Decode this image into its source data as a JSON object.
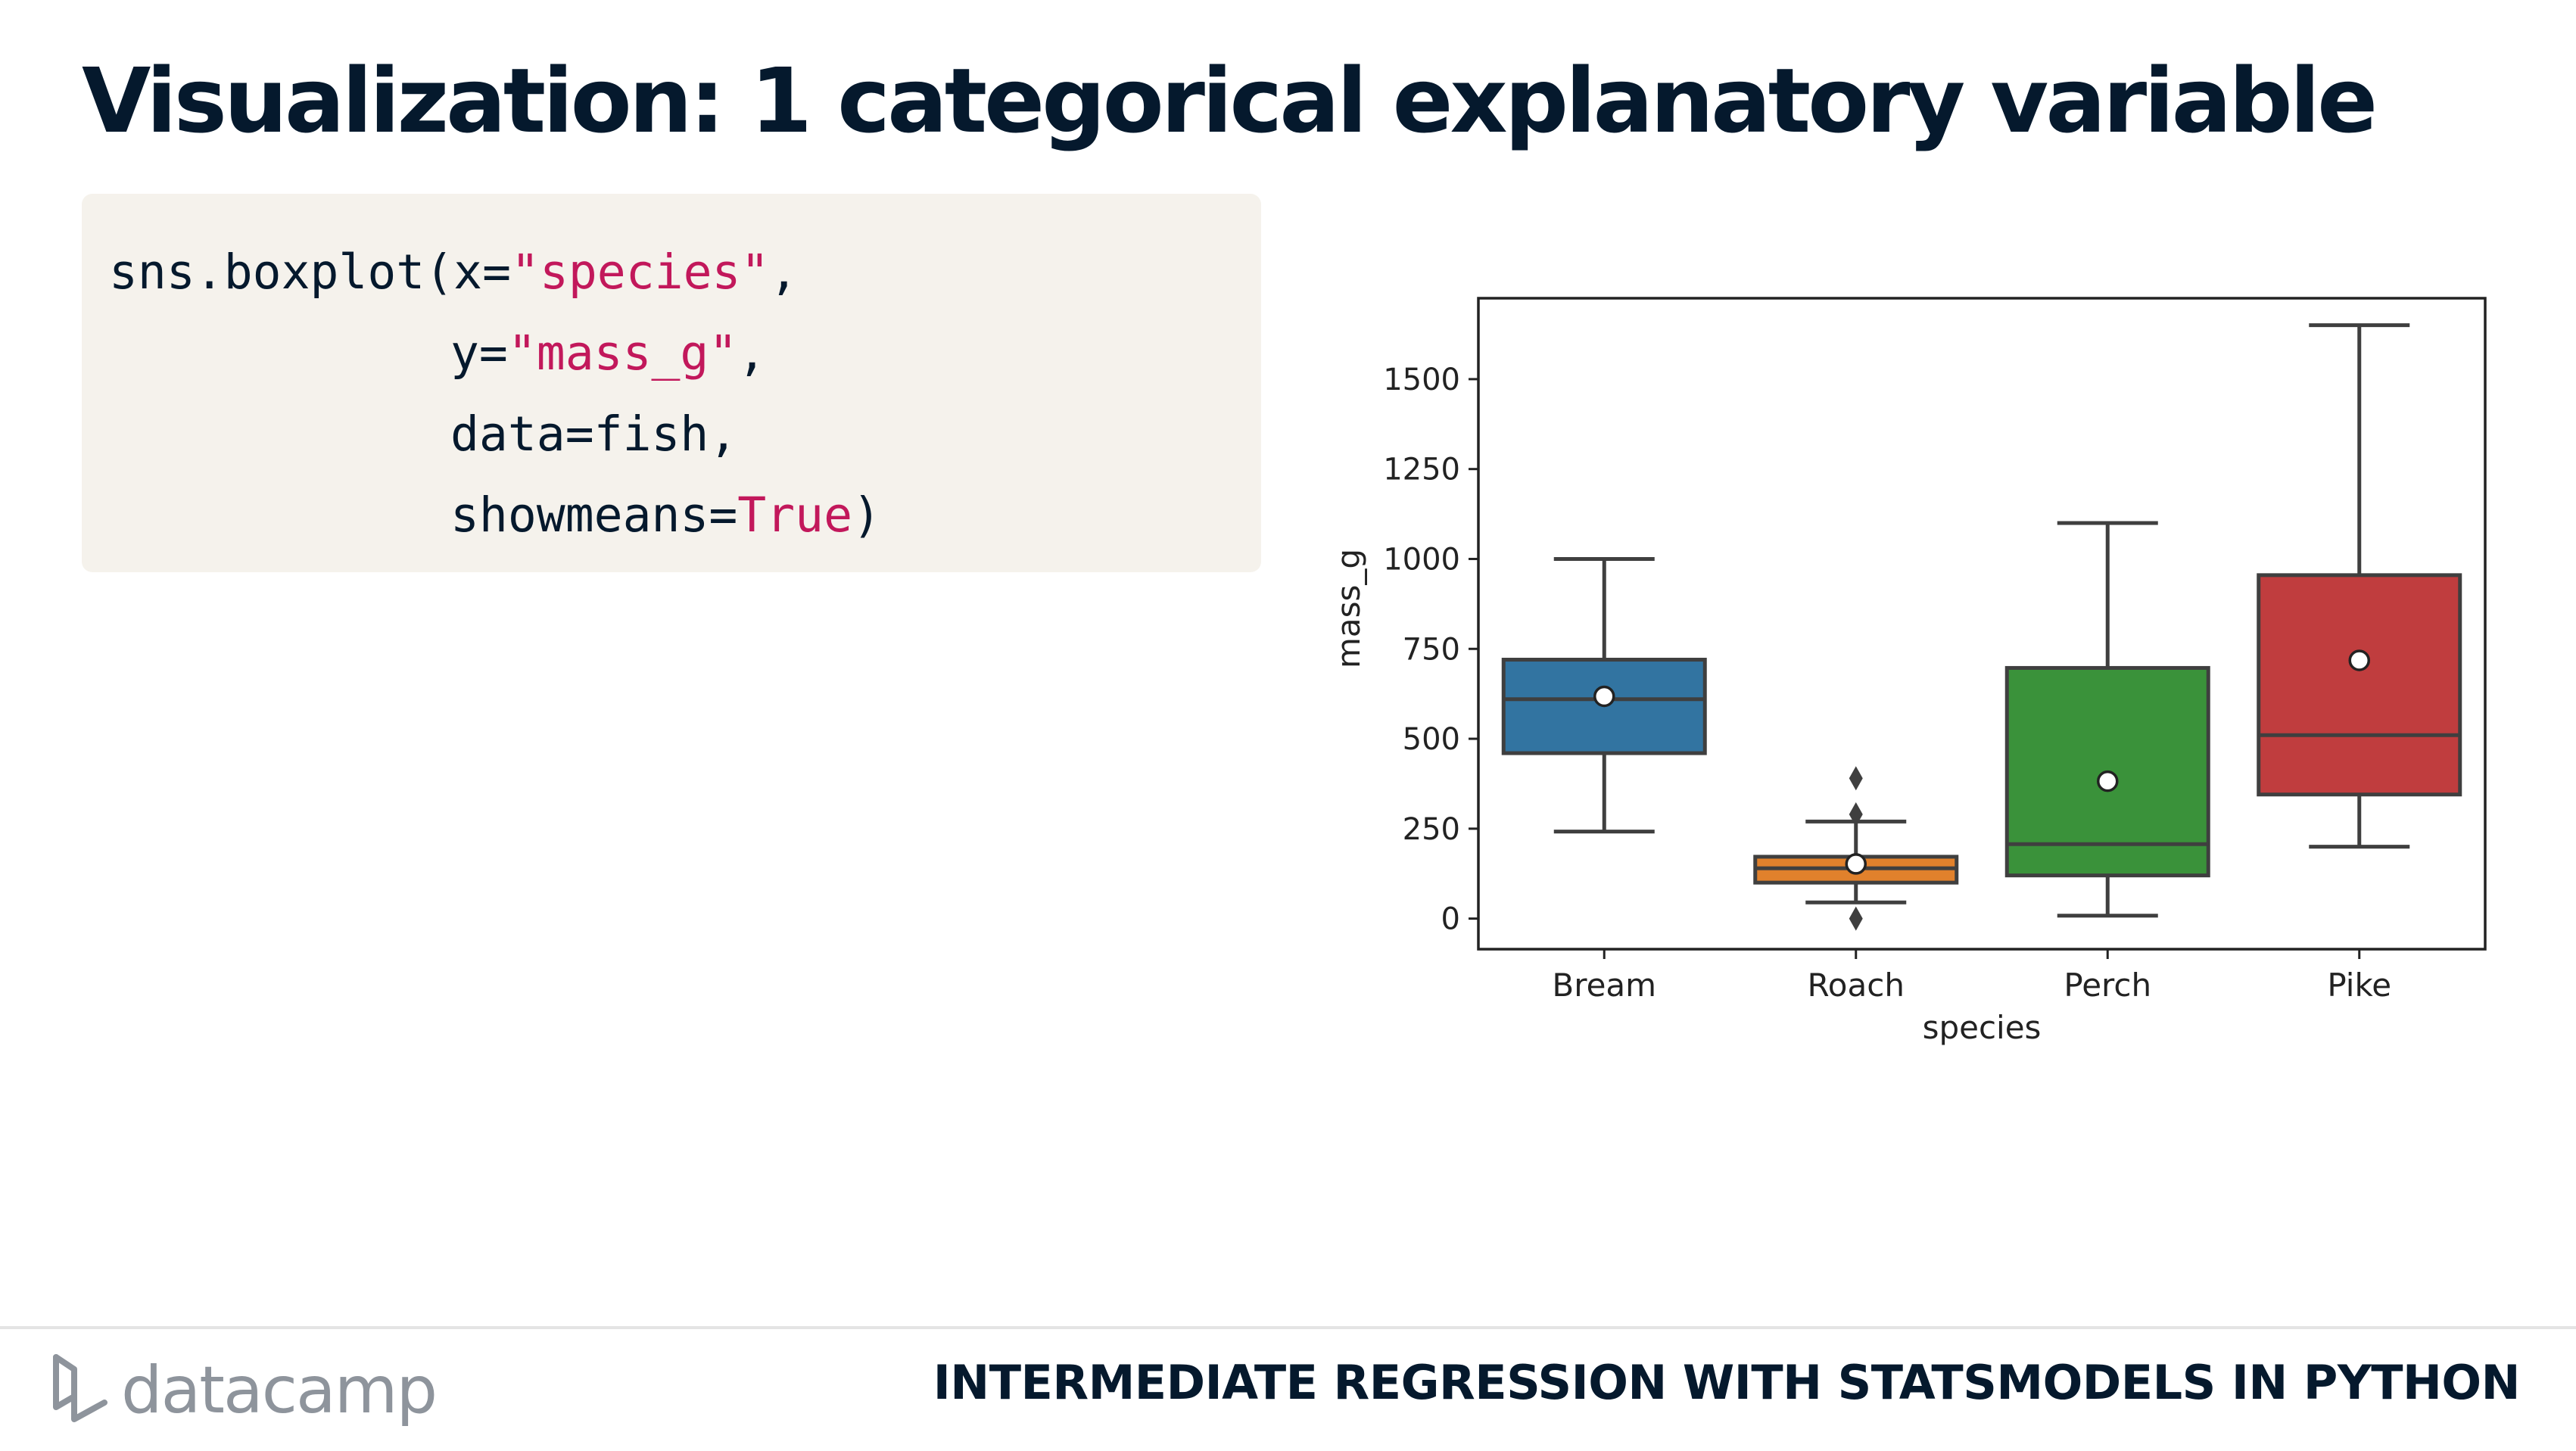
{
  "slide": {
    "title": "Visualization: 1 categorical explanatory variable"
  },
  "code": {
    "line1": {
      "prefix": "sns.boxplot(x=",
      "str": "\"species\"",
      "suffix": ","
    },
    "line2": {
      "prefix": "y=",
      "str": "\"mass_g\"",
      "suffix": ","
    },
    "line3": {
      "text": "data=fish,"
    },
    "line4": {
      "prefix": "showmeans=",
      "str": "True",
      "suffix": ")"
    }
  },
  "footer": {
    "brand": "datacamp",
    "course": "INTERMEDIATE REGRESSION WITH STATSMODELS IN PYTHON"
  },
  "colors": {
    "title": "#05192d",
    "code_string": "#c2185b",
    "code_bg": "#f5f2ec"
  },
  "chart_data": {
    "type": "box",
    "xlabel": "species",
    "ylabel": "mass_g",
    "ylim": [
      -85,
      1725
    ],
    "yticks": [
      0,
      250,
      500,
      750,
      1000,
      1250,
      1500
    ],
    "grid": false,
    "categories": [
      "Bream",
      "Roach",
      "Perch",
      "Pike"
    ],
    "boxes": [
      {
        "category": "Bream",
        "whisker_low": 242,
        "q1": 460,
        "median": 610,
        "q3": 720,
        "whisker_high": 1000,
        "mean": 618,
        "outliers": [],
        "color": "#3274a1"
      },
      {
        "category": "Roach",
        "whisker_low": 45,
        "q1": 100,
        "median": 140,
        "q3": 172,
        "whisker_high": 270,
        "mean": 152,
        "outliers": [
          0,
          290,
          390
        ],
        "color": "#e1812c"
      },
      {
        "category": "Perch",
        "whisker_low": 8,
        "q1": 120,
        "median": 207,
        "q3": 697,
        "whisker_high": 1100,
        "mean": 382,
        "outliers": [],
        "color": "#3a923a"
      },
      {
        "category": "Pike",
        "whisker_low": 200,
        "q1": 345,
        "median": 510,
        "q3": 955,
        "whisker_high": 1650,
        "mean": 718,
        "outliers": [],
        "color": "#c03d3e"
      }
    ]
  }
}
